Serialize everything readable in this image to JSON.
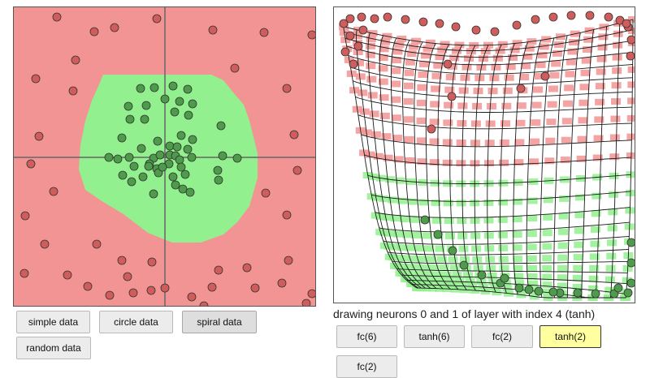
{
  "data_buttons": [
    {
      "label": "simple data",
      "active": false
    },
    {
      "label": "circle data",
      "active": false
    },
    {
      "label": "spiral data",
      "active": true
    },
    {
      "label": "random data",
      "active": false
    }
  ],
  "caption": "drawing neurons 0 and 1 of layer with index 4 (tanh)",
  "layer_buttons": [
    {
      "label": "fc(6)",
      "selected": false
    },
    {
      "label": "tanh(6)",
      "selected": false
    },
    {
      "label": "fc(2)",
      "selected": false
    },
    {
      "label": "tanh(2)",
      "selected": true
    },
    {
      "label": "fc(2)",
      "selected": false
    }
  ],
  "colors": {
    "class_red_region": "#f39494",
    "class_green_region": "#93f08f",
    "red_point": "#d05c5c",
    "green_point": "#4e9b4c",
    "point_stroke": "#333333",
    "selected_button": "#ffffa0"
  }
}
